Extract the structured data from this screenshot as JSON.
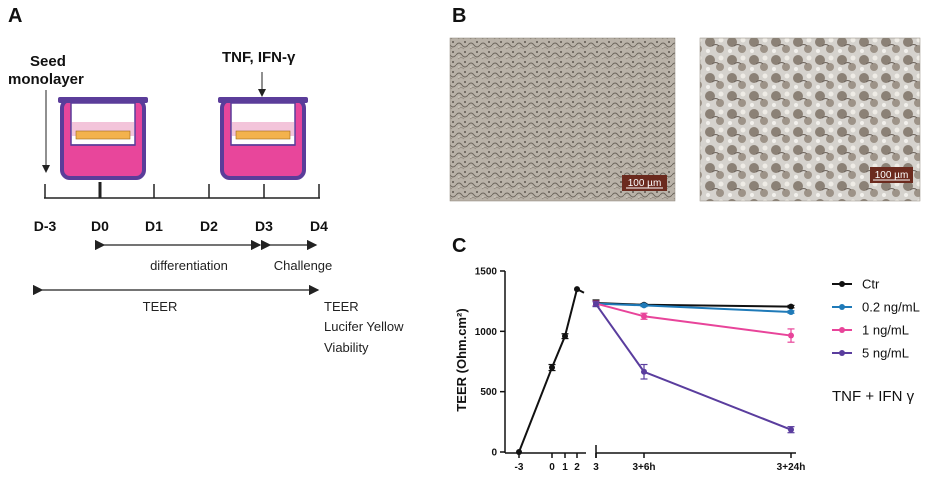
{
  "panels": {
    "a": {
      "label": "A",
      "seed_label": [
        "Seed",
        "monolayer"
      ],
      "treatment_label": "TNF, IFN-γ",
      "days": [
        "D-3",
        "D0",
        "D1",
        "D2",
        "D3",
        "D4"
      ],
      "differentiation_label": "differentiation",
      "challenge_label": "Challenge",
      "teer_label": "TEER",
      "readouts": [
        "TEER",
        "Lucifer Yellow",
        "Viability"
      ],
      "well_colors": {
        "medium": "#e8469b",
        "frame": "#5b3d9a",
        "cells": "#f3b24d"
      }
    },
    "b": {
      "label": "B",
      "scale_bar_labels": [
        "100 µm",
        "100 µm"
      ]
    },
    "c": {
      "label": "C",
      "annotation": "TNF + IFN γ"
    }
  },
  "chart_data": {
    "type": "line",
    "ylabel": "TEER (Ohm.cm²)",
    "ylim": [
      0,
      1500
    ],
    "yticks": [
      0,
      500,
      1000,
      1500
    ],
    "xticks": [
      "-3",
      "0",
      "1",
      "2",
      "3",
      "3+6h",
      "3+24h"
    ],
    "broken_x_axis": true,
    "legend_placement": "right",
    "series": [
      {
        "name": "Ctr",
        "color": "#111111",
        "x": [
          "-3",
          "0",
          "1",
          "2"
        ],
        "y": [
          0,
          700,
          960,
          1350
        ],
        "err": [
          0,
          25,
          20,
          0
        ]
      },
      {
        "name": "Ctr",
        "color": "#111111",
        "x": [
          "3",
          "3+6h",
          "3+24h"
        ],
        "y": [
          1235,
          1220,
          1205
        ],
        "err": [
          25,
          10,
          10
        ]
      },
      {
        "name": "0.2 ng/mL",
        "color": "#1f7ab8",
        "x": [
          "3",
          "3+6h",
          "3+24h"
        ],
        "y": [
          1230,
          1215,
          1160
        ],
        "err": [
          20,
          10,
          10
        ]
      },
      {
        "name": "1 ng/mL",
        "color": "#e8449a",
        "x": [
          "3",
          "3+6h",
          "3+24h"
        ],
        "y": [
          1230,
          1125,
          965
        ],
        "err": [
          20,
          25,
          55
        ]
      },
      {
        "name": "5 ng/mL",
        "color": "#5a3d9e",
        "x": [
          "3",
          "3+6h",
          "3+24h"
        ],
        "y": [
          1225,
          665,
          185
        ],
        "err": [
          20,
          60,
          25
        ]
      }
    ],
    "legend": [
      {
        "name": "Ctr",
        "color": "#111111"
      },
      {
        "name": "0.2 ng/mL",
        "color": "#1f7ab8"
      },
      {
        "name": "1 ng/mL",
        "color": "#e8449a"
      },
      {
        "name": "5 ng/mL",
        "color": "#5a3d9e"
      }
    ]
  }
}
